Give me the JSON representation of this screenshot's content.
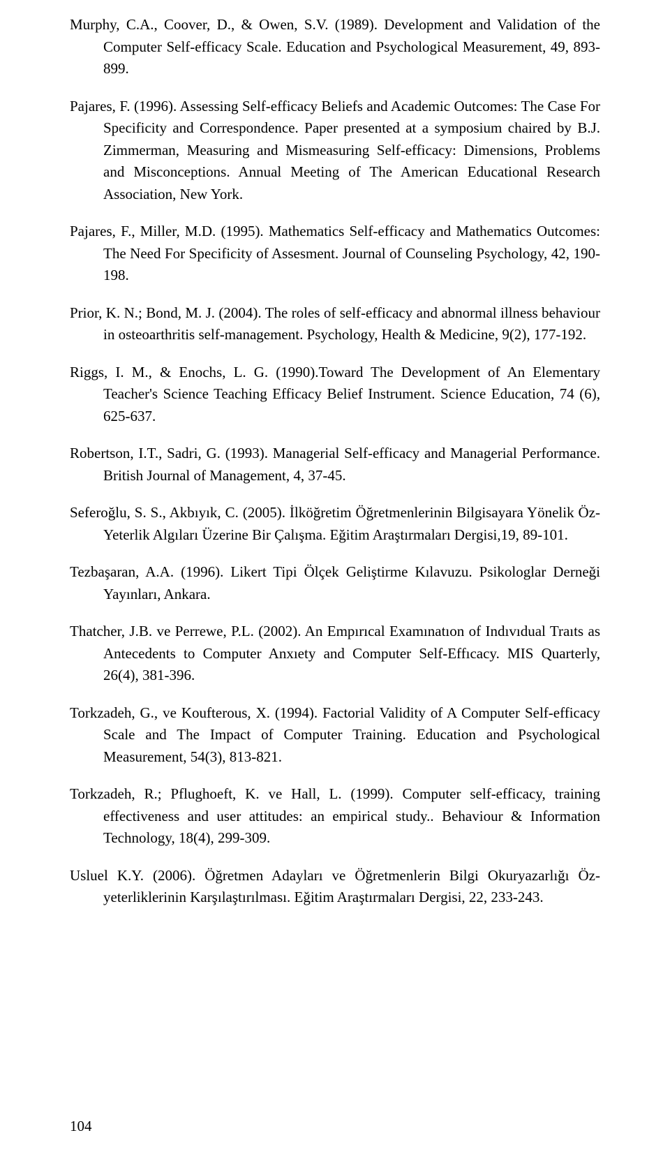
{
  "references": [
    "Murphy, C.A., Coover, D., & Owen, S.V. (1989). Development and Validation of the Computer Self-efficacy Scale. Education and Psychological Measurement, 49, 893-899.",
    "Pajares, F. (1996). Assessing Self-efficacy Beliefs and Academic Outcomes: The Case For Specificity and Correspondence. Paper presented at a symposium chaired by B.J. Zimmerman, Measuring and Mismeasuring Self-efficacy: Dimensions, Problems and Misconceptions. Annual Meeting of The American Educational Research Association, New York.",
    "Pajares, F., Miller, M.D. (1995). Mathematics Self-efficacy and Mathematics Outcomes: The Need For Specificity of Assesment. Journal of Counseling Psychology, 42, 190-198.",
    "Prior, K. N.; Bond, M. J. (2004). The roles of self-efficacy and abnormal illness behaviour in osteoarthritis self-management. Psychology, Health & Medicine, 9(2), 177-192.",
    "Riggs, I. M., & Enochs, L. G. (1990).Toward The Development of An Elementary Teacher's Science Teaching Efficacy Belief Instrument. Science Education, 74 (6), 625-637.",
    "Robertson, I.T., Sadri, G. (1993). Managerial Self-efficacy and Managerial Performance. British Journal of Management, 4, 37-45.",
    "Seferoğlu, S. S., Akbıyık, C. (2005). İlköğretim Öğretmenlerinin Bilgisayara Yönelik Öz-Yeterlik Algıları Üzerine Bir Çalışma. Eğitim Araştırmaları Dergisi,19, 89-101.",
    "Tezbaşaran, A.A. (1996). Likert Tipi Ölçek Geliştirme Kılavuzu. Psikologlar Derneği Yayınları, Ankara.",
    "Thatcher, J.B. ve Perrewe, P.L. (2002). An Empırıcal Examınatıon of Indıvıdual Traıts as Antecedents to Computer Anxıety and Computer Self-Effıcacy. MIS Quarterly, 26(4), 381-396.",
    "Torkzadeh, G., ve Koufterous, X. (1994). Factorial Validity of A Computer Self-efficacy Scale and The Impact of Computer Training. Education and Psychological Measurement, 54(3), 813-821.",
    "Torkzadeh, R.; Pflughoeft, K. ve Hall, L. (1999). Computer self-efficacy, training effectiveness and user attitudes: an empirical study.. Behaviour & Information Technology, 18(4), 299-309.",
    "Usluel K.Y. (2006). Öğretmen Adayları ve Öğretmenlerin Bilgi Okuryazarlığı Öz-yeterliklerinin Karşılaştırılması. Eğitim Araştırmaları Dergisi, 22, 233-243."
  ],
  "page_number": "104",
  "text_color": "#000000",
  "background_color": "#ffffff",
  "font_size": 21
}
